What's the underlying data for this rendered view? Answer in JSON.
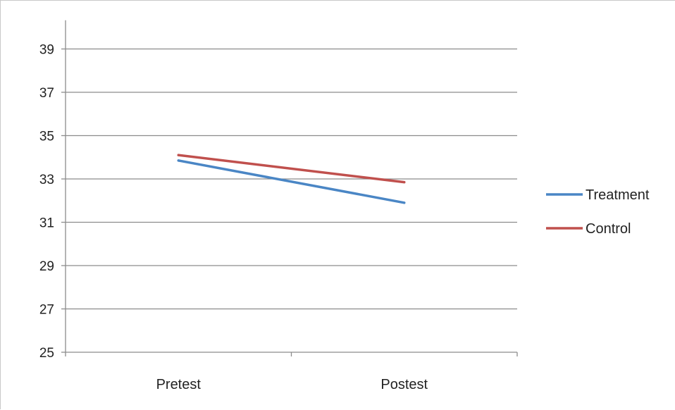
{
  "chart_data": {
    "type": "line",
    "categories": [
      "Pretest",
      "Postest"
    ],
    "series": [
      {
        "name": "Treatment",
        "values": [
          33.85,
          31.9
        ],
        "color": "#4a86c5"
      },
      {
        "name": "Control",
        "values": [
          34.1,
          32.85
        ],
        "color": "#c0504d"
      }
    ],
    "y_ticks": [
      25,
      27,
      29,
      31,
      33,
      35,
      37,
      39
    ],
    "ylim": [
      25,
      40
    ],
    "grid": true,
    "legend_position": "right",
    "title": "",
    "xlabel": "",
    "ylabel": ""
  }
}
